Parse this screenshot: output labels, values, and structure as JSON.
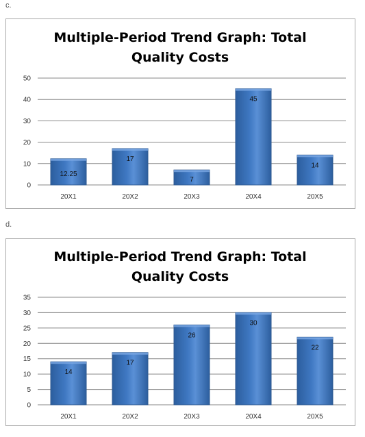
{
  "sections": [
    {
      "label": "c.",
      "chart_data": {
        "type": "bar",
        "title": "Multiple-Period Trend Graph: Total Quality Costs",
        "title_lines": [
          "Multiple-Period Trend Graph: Total",
          "Quality Costs"
        ],
        "categories": [
          "20X1",
          "20X2",
          "20X3",
          "20X4",
          "20X5"
        ],
        "values": [
          12.25,
          17,
          7,
          45,
          14
        ],
        "value_labels": [
          "12.25",
          "17",
          "7",
          "45",
          "14"
        ],
        "ylim": [
          0,
          50
        ],
        "yticks": [
          0,
          10,
          20,
          30,
          40,
          50
        ],
        "grid": true,
        "legend": "none",
        "bar_color": "#3f78c2",
        "xlabel": "",
        "ylabel": ""
      }
    },
    {
      "label": "d.",
      "chart_data": {
        "type": "bar",
        "title": "Multiple-Period Trend Graph: Total Quality Costs",
        "title_lines": [
          "Multiple-Period Trend Graph: Total",
          "Quality Costs"
        ],
        "categories": [
          "20X1",
          "20X2",
          "20X3",
          "20X4",
          "20X5"
        ],
        "values": [
          14,
          17,
          26,
          30,
          22
        ],
        "value_labels": [
          "14",
          "17",
          "26",
          "30",
          "22"
        ],
        "ylim": [
          0,
          35
        ],
        "yticks": [
          0,
          5,
          10,
          15,
          20,
          25,
          30,
          35
        ],
        "grid": true,
        "legend": "none",
        "bar_color": "#3f78c2",
        "xlabel": "",
        "ylabel": ""
      }
    }
  ]
}
